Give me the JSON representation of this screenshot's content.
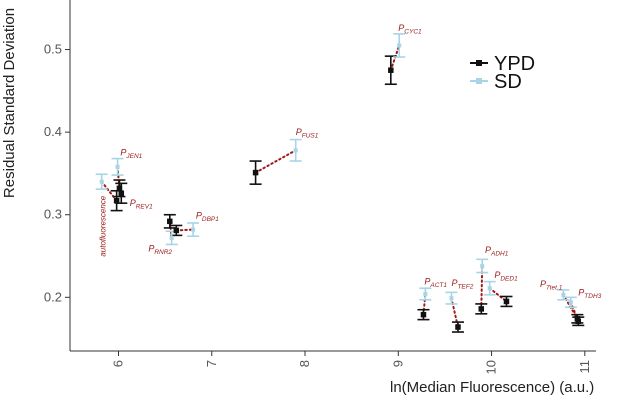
{
  "chart_data": {
    "type": "scatter",
    "title": "",
    "xlabel": "ln(Median Fluorescence) (a.u.)",
    "ylabel": "Residual Standard Deviation",
    "xlim": [
      5.48,
      11.12
    ],
    "ylim": [
      0.135,
      0.56
    ],
    "x_ticks": [
      6,
      7,
      8,
      9,
      10,
      11
    ],
    "y_ticks": [
      0.2,
      0.3,
      0.4,
      0.5
    ],
    "grid": false,
    "legend_position": "top-right",
    "colors": {
      "YPD": "#111111",
      "SD": "#a8d4e6",
      "link": "#a01818",
      "label": "#9b1b1b"
    },
    "series": [
      {
        "name": "YPD",
        "points": [
          {
            "promoter": "autofluorescence",
            "x": 5.98,
            "y": 0.317,
            "err": 0.012
          },
          {
            "promoter": "REV1",
            "x": 6.03,
            "y": 0.326,
            "err": 0.012
          },
          {
            "promoter": "JEN1",
            "x": 6.01,
            "y": 0.332,
            "err": 0.01
          },
          {
            "promoter": "RNR2",
            "x": 6.55,
            "y": 0.292,
            "err": 0.008
          },
          {
            "promoter": "DBP1",
            "x": 6.62,
            "y": 0.281,
            "err": 0.006
          },
          {
            "promoter": "FUS1",
            "x": 7.47,
            "y": 0.351,
            "err": 0.014
          },
          {
            "promoter": "CYC1",
            "x": 8.92,
            "y": 0.475,
            "err": 0.017
          },
          {
            "promoter": "ACT1",
            "x": 9.27,
            "y": 0.179,
            "err": 0.006
          },
          {
            "promoter": "TEF2",
            "x": 9.64,
            "y": 0.164,
            "err": 0.006
          },
          {
            "promoter": "ADH1",
            "x": 9.89,
            "y": 0.186,
            "err": 0.006
          },
          {
            "promoter": "DED1",
            "x": 10.16,
            "y": 0.195,
            "err": 0.006
          },
          {
            "promoter": "TDH3",
            "x": 10.92,
            "y": 0.174,
            "err": 0.005
          },
          {
            "promoter": "7tet.1",
            "x": 10.93,
            "y": 0.171,
            "err": 0.005
          }
        ]
      },
      {
        "name": "SD",
        "points": [
          {
            "promoter": "autofluorescence",
            "x": 5.82,
            "y": 0.34,
            "err": 0.009
          },
          {
            "promoter": "JEN1",
            "x": 5.99,
            "y": 0.358,
            "err": 0.01
          },
          {
            "promoter": "RNR2",
            "x": 6.57,
            "y": 0.272,
            "err": 0.008
          },
          {
            "promoter": "DBP1",
            "x": 6.8,
            "y": 0.282,
            "err": 0.008
          },
          {
            "promoter": "FUS1",
            "x": 7.9,
            "y": 0.378,
            "err": 0.013
          },
          {
            "promoter": "CYC1",
            "x": 9.01,
            "y": 0.505,
            "err": 0.014
          },
          {
            "promoter": "ACT1",
            "x": 9.29,
            "y": 0.204,
            "err": 0.007
          },
          {
            "promoter": "TEF2",
            "x": 9.57,
            "y": 0.199,
            "err": 0.007
          },
          {
            "promoter": "ADH1",
            "x": 9.9,
            "y": 0.238,
            "err": 0.008
          },
          {
            "promoter": "DED1",
            "x": 9.98,
            "y": 0.211,
            "err": 0.008
          },
          {
            "promoter": "7tet.1",
            "x": 10.77,
            "y": 0.203,
            "err": 0.006
          },
          {
            "promoter": "TDH3",
            "x": 10.85,
            "y": 0.194,
            "err": 0.006
          }
        ]
      }
    ],
    "promoter_labels": [
      {
        "text": "P",
        "sub": "JEN1",
        "x": 6.02,
        "y": 0.3715,
        "anchor": "start"
      },
      {
        "text": "P",
        "sub": "REV1",
        "x": 6.12,
        "y": 0.3105,
        "anchor": "start"
      },
      {
        "text": "P",
        "sub": "RNR2",
        "x": 6.32,
        "y": 0.2555,
        "anchor": "start"
      },
      {
        "text": "P",
        "sub": "DBP1",
        "x": 6.83,
        "y": 0.2955,
        "anchor": "start"
      },
      {
        "text": "P",
        "sub": "FUS1",
        "x": 7.9,
        "y": 0.3965,
        "anchor": "start"
      },
      {
        "text": "P",
        "sub": "CYC1",
        "x": 9.0,
        "y": 0.5225,
        "anchor": "start"
      },
      {
        "text": "P",
        "sub": "ACT1",
        "x": 9.28,
        "y": 0.2155,
        "anchor": "start"
      },
      {
        "text": "P",
        "sub": "TEF2",
        "x": 9.57,
        "y": 0.2135,
        "anchor": "start"
      },
      {
        "text": "P",
        "sub": "ADH1",
        "x": 9.93,
        "y": 0.2535,
        "anchor": "start"
      },
      {
        "text": "P",
        "sub": "DED1",
        "x": 10.03,
        "y": 0.2235,
        "anchor": "start"
      },
      {
        "text": "P",
        "sub": "7tet.1",
        "x": 10.52,
        "y": 0.2125,
        "anchor": "start"
      },
      {
        "text": "P",
        "sub": "TDH3",
        "x": 10.93,
        "y": 0.2025,
        "anchor": "start"
      }
    ],
    "rotated_label": {
      "text": "autofluorescence",
      "x": 5.83,
      "y": 0.323
    },
    "links": [
      {
        "from": [
          5.82,
          0.34
        ],
        "to": [
          5.98,
          0.317
        ]
      },
      {
        "from": [
          5.99,
          0.358
        ],
        "to": [
          6.01,
          0.332
        ]
      },
      {
        "from": [
          6.57,
          0.272
        ],
        "to": [
          6.55,
          0.292
        ]
      },
      {
        "from": [
          6.62,
          0.281
        ],
        "to": [
          6.8,
          0.282
        ]
      },
      {
        "from": [
          7.47,
          0.351
        ],
        "to": [
          7.9,
          0.378
        ]
      },
      {
        "from": [
          8.92,
          0.475
        ],
        "to": [
          9.01,
          0.505
        ]
      },
      {
        "from": [
          9.27,
          0.179
        ],
        "to": [
          9.29,
          0.204
        ]
      },
      {
        "from": [
          9.57,
          0.199
        ],
        "to": [
          9.64,
          0.164
        ]
      },
      {
        "from": [
          9.89,
          0.186
        ],
        "to": [
          9.9,
          0.238
        ]
      },
      {
        "from": [
          9.98,
          0.211
        ],
        "to": [
          10.16,
          0.195
        ]
      },
      {
        "from": [
          10.77,
          0.203
        ],
        "to": [
          10.92,
          0.174
        ]
      },
      {
        "from": [
          10.85,
          0.194
        ],
        "to": [
          10.93,
          0.171
        ]
      }
    ],
    "legend": [
      {
        "name": "YPD",
        "color": "#111111"
      },
      {
        "name": "SD",
        "color": "#a8d4e6"
      }
    ]
  }
}
